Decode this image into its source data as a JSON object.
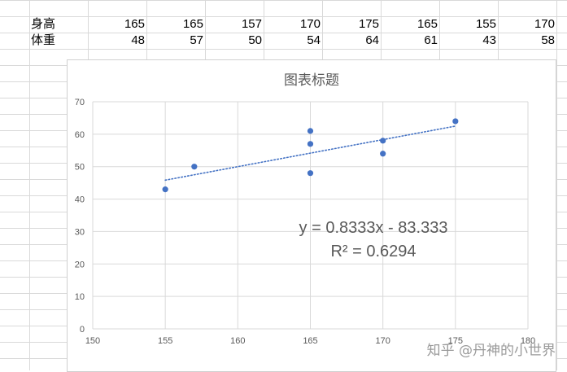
{
  "sheet": {
    "rows": [
      {
        "label": "身高",
        "values": [
          "165",
          "165",
          "157",
          "170",
          "175",
          "165",
          "155",
          "170"
        ]
      },
      {
        "label": "体重",
        "values": [
          "48",
          "57",
          "50",
          "54",
          "64",
          "61",
          "43",
          "58"
        ]
      }
    ]
  },
  "chart_data": {
    "type": "scatter",
    "title": "图表标题",
    "x": [
      165,
      165,
      157,
      170,
      175,
      165,
      155,
      170
    ],
    "y": [
      48,
      57,
      50,
      54,
      64,
      61,
      43,
      58
    ],
    "xlim": [
      150,
      180
    ],
    "ylim": [
      0,
      70
    ],
    "x_ticks": [
      "150",
      "155",
      "160",
      "165",
      "170",
      "175",
      "180"
    ],
    "y_ticks": [
      "0",
      "10",
      "20",
      "30",
      "40",
      "50",
      "60",
      "70"
    ],
    "grid": true,
    "trendline": {
      "type": "linear",
      "slope": 0.8333,
      "intercept": -83.333,
      "x_range": [
        155,
        175
      ]
    },
    "equation_label": "y = 0.8333x - 83.333",
    "r2_label": "R² = 0.6294",
    "series_color": "#4472c4"
  },
  "watermark": "知乎 @丹神的小世界"
}
